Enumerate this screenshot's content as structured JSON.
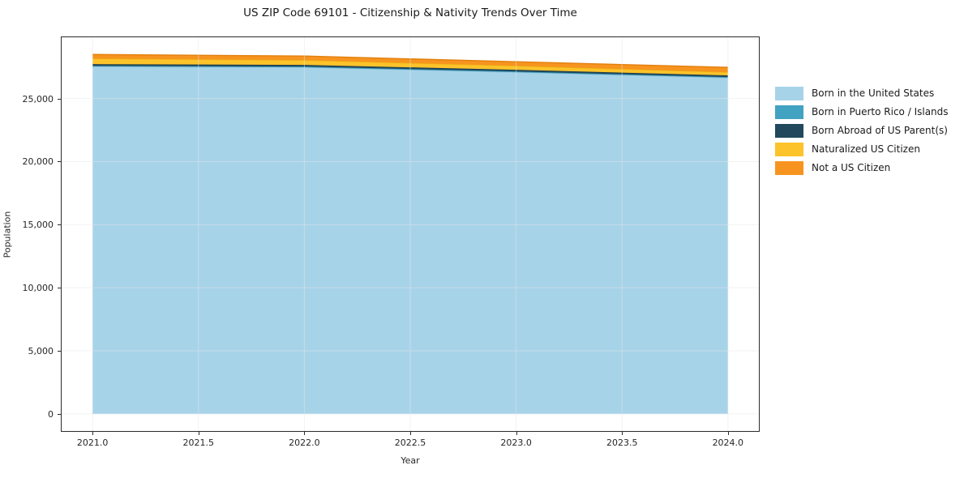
{
  "title": "US ZIP Code 69101 - Citizenship & Nativity Trends Over Time",
  "chart_data": {
    "type": "area",
    "stacked": true,
    "title": "US ZIP Code 69101 - Citizenship & Nativity Trends Over Time",
    "xlabel": "Year",
    "ylabel": "Population",
    "x": [
      2021,
      2022,
      2023,
      2024
    ],
    "series": [
      {
        "name": "Born in the United States",
        "color": "#a7d3e9",
        "edge": "#8fc4de",
        "values": [
          27540,
          27480,
          27090,
          26650
        ]
      },
      {
        "name": "Born in Puerto Rico / Islands",
        "color": "#42a2c1",
        "edge": "#3892af",
        "values": [
          60,
          60,
          60,
          60
        ]
      },
      {
        "name": "Born Abroad of US Parent(s)",
        "color": "#21485c",
        "edge": "#1c3e4f",
        "values": [
          130,
          130,
          130,
          130
        ]
      },
      {
        "name": "Naturalized US Citizen",
        "color": "#fcc32b",
        "edge": "#ecae12",
        "values": [
          445,
          380,
          320,
          255
        ]
      },
      {
        "name": "Not a US Citizen",
        "color": "#f7941f",
        "edge": "#e27f0d",
        "values": [
          320,
          320,
          320,
          380
        ]
      }
    ],
    "xlim": [
      2020.85,
      2024.15
    ],
    "ylim": [
      -1425,
      29925
    ],
    "xticks": [
      2021.0,
      2021.5,
      2022.0,
      2022.5,
      2023.0,
      2023.5,
      2024.0
    ],
    "xtick_labels": [
      "2021.0",
      "2021.5",
      "2022.0",
      "2022.5",
      "2023.0",
      "2023.5",
      "2024.0"
    ],
    "yticks": [
      0,
      5000,
      10000,
      15000,
      20000,
      25000
    ],
    "ytick_labels": [
      "0",
      "5,000",
      "10,000",
      "15,000",
      "20,000",
      "25,000"
    ],
    "grid": true,
    "legend_position": "right",
    "frame_color": "#2b2b2b",
    "grid_color": "#e6e6e6"
  }
}
